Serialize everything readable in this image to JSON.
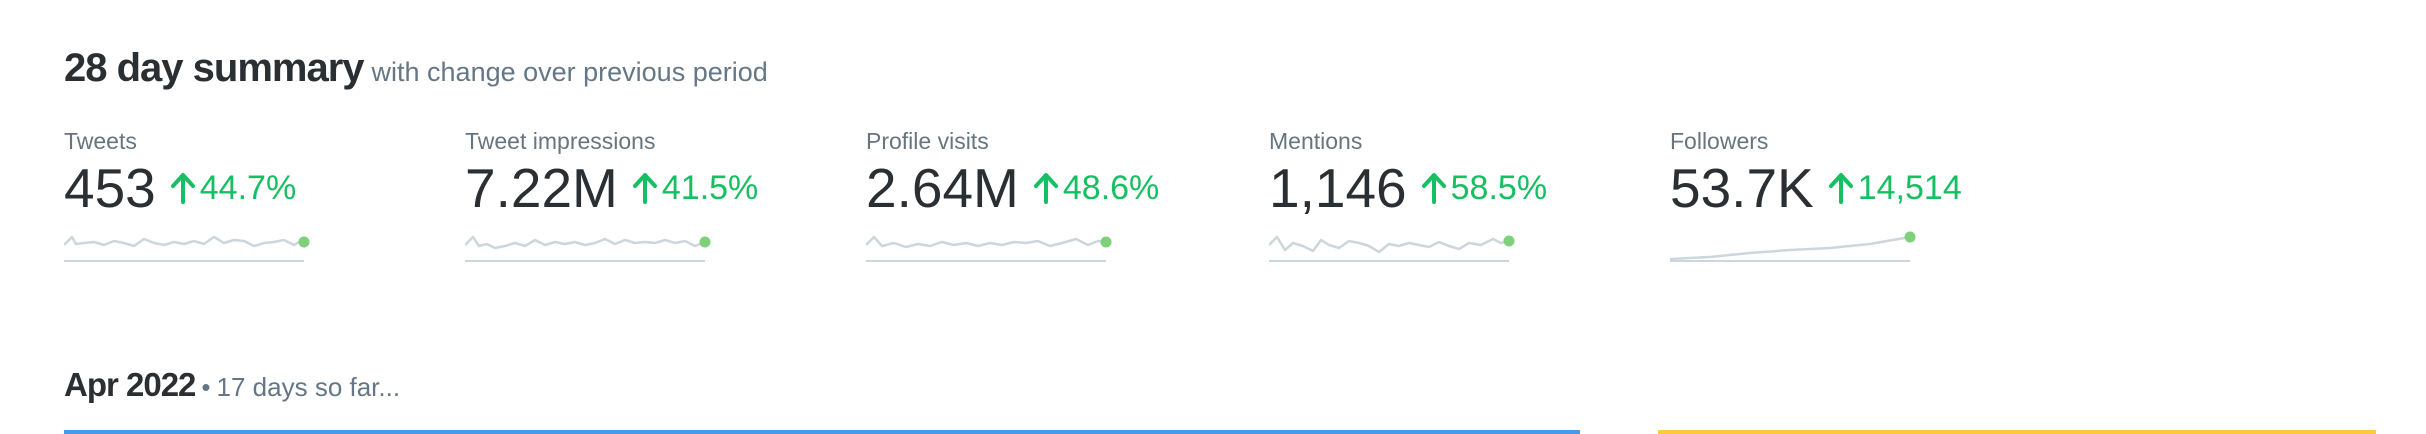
{
  "summary": {
    "title": "28 day summary",
    "subtitle": "with change over previous period",
    "metrics": [
      {
        "label": "Tweets",
        "value": "453",
        "change": "44.7%"
      },
      {
        "label": "Tweet impressions",
        "value": "7.22M",
        "change": "41.5%"
      },
      {
        "label": "Profile visits",
        "value": "2.64M",
        "change": "48.6%"
      },
      {
        "label": "Mentions",
        "value": "1,146",
        "change": "58.5%"
      },
      {
        "label": "Followers",
        "value": "53.7K",
        "change": "14,514"
      }
    ]
  },
  "month": {
    "title": "Apr 2022",
    "separator": "•",
    "note": "17 days so far..."
  }
}
